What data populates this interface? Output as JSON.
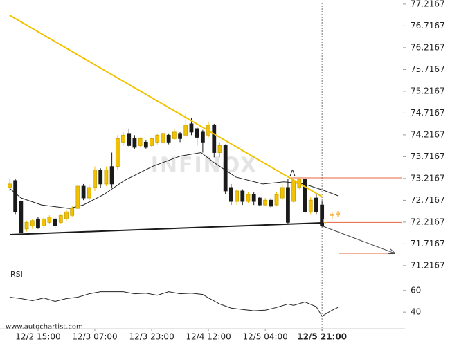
{
  "chart_data": {
    "type": "candlestick",
    "watermark": "INFINOX",
    "footer": "www.autochartist.com",
    "xlim": [
      -1.7,
      69
    ],
    "xticks": [
      {
        "value": 5,
        "label": "12/2 15:00"
      },
      {
        "value": 15,
        "label": "12/3 07:00"
      },
      {
        "value": 25,
        "label": "12/3 23:00"
      },
      {
        "value": 35,
        "label": "12/4 12:00"
      },
      {
        "value": 45,
        "label": "12/5 04:00"
      },
      {
        "value": 55,
        "label": "12/5 21:00"
      }
    ],
    "ylim": [
      71.12,
      77.31
    ],
    "yticks": [
      77.2167,
      76.7167,
      76.2167,
      75.7167,
      75.2167,
      74.7167,
      74.2167,
      73.7167,
      73.2167,
      72.7167,
      72.2167,
      71.7167,
      71.2167
    ],
    "cursor_x": 55,
    "series": [
      {
        "up_color": "#f2c200",
        "down_color": "#1a1a1a",
        "hollow": false,
        "x": [
          0,
          1,
          2,
          3,
          4,
          5,
          6,
          7,
          8,
          9,
          10,
          11,
          12,
          13,
          14,
          15,
          16,
          17,
          18,
          19,
          20,
          21,
          22,
          23,
          24,
          25,
          26,
          27,
          28,
          29,
          30,
          31,
          32,
          33,
          34,
          35,
          36,
          37,
          38,
          39,
          40,
          41,
          42,
          43,
          44,
          45,
          46,
          47,
          48,
          49,
          50,
          51,
          52,
          53,
          54,
          55
        ],
        "open": [
          73.01,
          73.17,
          72.69,
          72.06,
          72.13,
          72.29,
          72.13,
          72.21,
          72.29,
          72.21,
          72.29,
          72.37,
          72.53,
          73.04,
          72.77,
          73.01,
          73.41,
          73.09,
          73.49,
          73.49,
          74.05,
          74.25,
          74.13,
          73.97,
          74.05,
          73.97,
          74.05,
          74.05,
          74.21,
          74.13,
          74.25,
          74.21,
          74.47,
          74.36,
          74.28,
          74.21,
          74.44,
          73.81,
          73.97,
          73.01,
          72.69,
          72.93,
          72.69,
          72.85,
          72.77,
          72.61,
          72.72,
          72.61,
          72.77,
          73.01,
          72.69,
          73.01,
          73.2,
          72.45,
          72.77,
          72.61
        ],
        "high": [
          73.2,
          73.2,
          72.72,
          72.25,
          72.29,
          72.33,
          72.33,
          72.37,
          72.33,
          72.4,
          72.5,
          72.58,
          73.09,
          73.09,
          73.09,
          73.49,
          73.45,
          73.49,
          73.81,
          74.21,
          74.28,
          74.36,
          74.21,
          74.16,
          74.1,
          74.16,
          74.25,
          74.28,
          74.25,
          74.36,
          74.28,
          74.7,
          74.6,
          74.4,
          74.33,
          74.5,
          74.47,
          74.05,
          74.0,
          73.09,
          72.97,
          72.97,
          72.9,
          72.9,
          72.8,
          72.77,
          72.77,
          72.9,
          73.09,
          73.2,
          73.25,
          73.25,
          73.25,
          72.8,
          72.85,
          72.69
        ],
        "low": [
          72.93,
          72.4,
          71.95,
          72.0,
          72.06,
          72.06,
          72.09,
          72.18,
          72.09,
          72.18,
          72.25,
          72.33,
          72.5,
          72.72,
          72.72,
          72.93,
          73.01,
          73.04,
          73.01,
          73.41,
          73.97,
          73.93,
          73.9,
          73.93,
          73.9,
          73.93,
          74.0,
          74.0,
          74.0,
          74.1,
          74.05,
          74.16,
          74.21,
          73.97,
          73.81,
          74.16,
          73.7,
          73.7,
          72.85,
          72.61,
          72.61,
          72.61,
          72.65,
          72.61,
          72.58,
          72.58,
          72.53,
          72.58,
          72.72,
          72.18,
          72.65,
          72.97,
          72.4,
          72.4,
          72.4,
          72.1
        ],
        "close": [
          73.09,
          72.45,
          71.98,
          72.21,
          72.25,
          72.09,
          72.29,
          72.33,
          72.13,
          72.37,
          72.45,
          72.53,
          73.04,
          72.77,
          73.01,
          73.41,
          73.09,
          73.41,
          73.09,
          74.13,
          74.21,
          73.97,
          73.93,
          74.13,
          73.93,
          74.13,
          74.21,
          74.25,
          74.05,
          74.28,
          74.13,
          74.44,
          74.28,
          74.16,
          74.05,
          74.44,
          73.81,
          73.97,
          72.93,
          72.69,
          72.93,
          72.69,
          72.85,
          72.69,
          72.61,
          72.72,
          72.58,
          72.85,
          73.01,
          72.21,
          73.17,
          73.2,
          72.45,
          72.72,
          72.45,
          72.13
        ]
      },
      {
        "up_color": "#f5a623",
        "down_color": "#f5a623",
        "hollow": true,
        "x": [
          55.6,
          56.8,
          57.8
        ],
        "open": [
          72.21,
          72.37,
          72.4
        ],
        "high": [
          72.29,
          72.45,
          72.47
        ],
        "low": [
          72.18,
          72.29,
          72.33
        ],
        "close": [
          72.29,
          72.4,
          72.42
        ]
      }
    ],
    "ma": {
      "color": "#222222",
      "x": [
        0,
        2,
        5.6,
        10.5,
        13,
        16.6,
        20.2,
        25.1,
        30,
        33.7,
        36.1,
        39.8,
        44.6,
        48.3,
        51.9,
        55.6,
        57.8
      ],
      "values": [
        72.99,
        72.77,
        72.61,
        72.53,
        72.61,
        72.85,
        73.17,
        73.49,
        73.73,
        73.81,
        73.57,
        73.25,
        73.09,
        73.14,
        73.09,
        72.93,
        72.82
      ]
    },
    "lines": [
      {
        "color": "#f2c200",
        "x": [
          0,
          55
        ],
        "y": [
          76.96,
          72.8
        ],
        "arrow": false
      },
      {
        "color": "#1a1a1a",
        "x": [
          0,
          55
        ],
        "y": [
          71.93,
          72.2
        ],
        "arrow": false
      },
      {
        "color": "#444444",
        "x": [
          55,
          67.8
        ],
        "y": [
          72.13,
          71.5
        ],
        "arrow": true
      }
    ],
    "levels": [
      {
        "color": "#e8643c",
        "x": [
          49.5,
          69
        ],
        "y": 73.23
      },
      {
        "color": "#e8643c",
        "x": [
          55,
          69
        ],
        "y": 72.21
      },
      {
        "color": "#e8643c",
        "x": [
          58,
          67.8
        ],
        "y": 71.5
      }
    ],
    "annotations": [
      {
        "text": "A",
        "x": 49.8,
        "y": 73.33,
        "color": "#e8643c"
      }
    ],
    "rsi": {
      "title": "RSI",
      "color": "#222222",
      "ylim": [
        28,
        69.4
      ],
      "yticks": [
        60,
        40
      ],
      "x": [
        0,
        2,
        4,
        6,
        8,
        10,
        12,
        14,
        16,
        18,
        20,
        22,
        24,
        26,
        28,
        30,
        32,
        34,
        35,
        37,
        39,
        41,
        43,
        45,
        47,
        49,
        50,
        52,
        54,
        55,
        56.6,
        57.8
      ],
      "values": [
        53.8,
        52.5,
        50.6,
        53.1,
        50.0,
        52.5,
        53.8,
        56.9,
        58.8,
        58.8,
        58.8,
        56.9,
        57.5,
        55.6,
        58.8,
        56.9,
        57.5,
        56.3,
        53.1,
        47.5,
        43.8,
        42.5,
        41.3,
        41.9,
        44.4,
        47.5,
        46.3,
        49.4,
        45.0,
        36.3,
        41.3,
        44.4
      ]
    }
  }
}
